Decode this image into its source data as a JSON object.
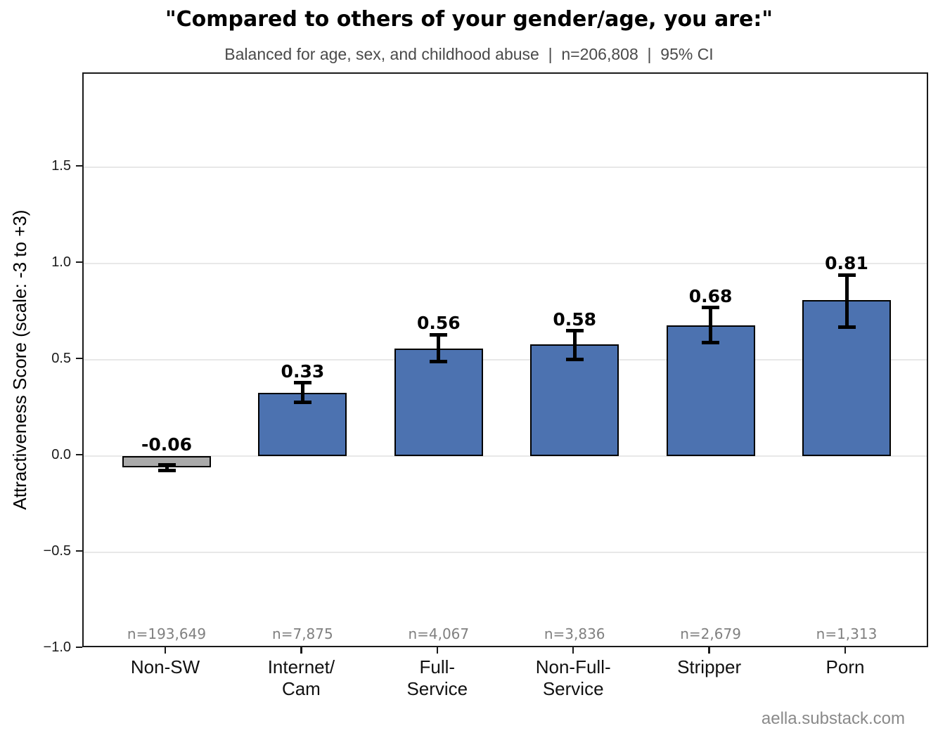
{
  "chart_data": {
    "type": "bar",
    "title": "\"Compared to others of your gender/age, you are:\"",
    "subtitle": "Balanced for age, sex, and childhood abuse  |  n=206,808  |  95% CI",
    "ylabel": "Attractiveness Score (scale: -3 to +3)",
    "footer": "aella.substack.com",
    "categories": [
      "Non-SW",
      "Internet/\nCam",
      "Full-\nService",
      "Non-Full-\nService",
      "Stripper",
      "Porn"
    ],
    "values": [
      -0.06,
      0.33,
      0.56,
      0.58,
      0.68,
      0.81
    ],
    "value_labels": [
      "-0.06",
      "0.33",
      "0.56",
      "0.58",
      "0.68",
      "0.81"
    ],
    "ci_low": [
      -0.075,
      0.28,
      0.49,
      0.5,
      0.59,
      0.67
    ],
    "ci_high": [
      -0.045,
      0.38,
      0.63,
      0.65,
      0.77,
      0.94
    ],
    "sample_labels": [
      "n=193,649",
      "n=7,875",
      "n=4,067",
      "n=3,836",
      "n=2,679",
      "n=1,313"
    ],
    "bar_colors": [
      "#aaaaaa",
      "#4c72b0",
      "#4c72b0",
      "#4c72b0",
      "#4c72b0",
      "#4c72b0"
    ],
    "bar_edge_color": "#000000",
    "error_color": "#000000",
    "gridline_color": "#e8e8e8",
    "grid": true,
    "legend_position": "none",
    "ylim": [
      -1.0,
      1.985
    ],
    "yticks": [
      1.5,
      1.0,
      0.5,
      0.0,
      -0.5,
      -1.0
    ],
    "ytick_labels": [
      "1.5",
      "1.0",
      "0.5",
      "0.0",
      "−0.5",
      "−1.0"
    ]
  }
}
